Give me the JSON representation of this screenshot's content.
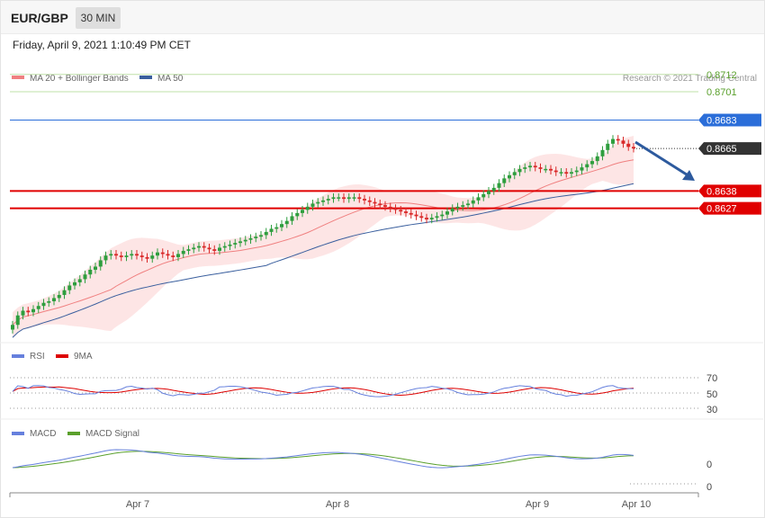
{
  "header": {
    "symbol": "EUR/GBP",
    "timeframe": "30 MIN",
    "datetime": "Friday, April 9, 2021 1:10:49 PM CET"
  },
  "legend": {
    "ma_bands": "MA 20 + Bollinger Bands",
    "ma50": "MA 50",
    "copyright": "Research © 2021 Trading Central"
  },
  "colors": {
    "up": "#2e9e3e",
    "down": "#d92828",
    "band_fill": "#fcdcdc",
    "ma20": "#f08080",
    "ma50": "#3a5f9e",
    "resistance_green": "#bfe0a8",
    "current": "#333333",
    "blue_level": "#2b6ed9",
    "support_red": "#e00000",
    "rsi": "#6680dd",
    "rsi_ma": "#dd0000",
    "macd": "#6680dd",
    "macd_signal": "#5aa02c"
  },
  "chart_data": [
    {
      "type": "candlestick",
      "title": "EUR/GBP 30 MIN",
      "x_ticks": [
        "Apr 7",
        "Apr 8",
        "Apr 9",
        "Apr 10"
      ],
      "ylim": [
        0.8548,
        0.8725
      ],
      "indicators": [
        "MA 20 + Bollinger Bands",
        "MA 50"
      ],
      "close_series_approx": [
        0.8553,
        0.8559,
        0.8562,
        0.8561,
        0.8563,
        0.8565,
        0.8567,
        0.8568,
        0.857,
        0.8572,
        0.8575,
        0.8578,
        0.858,
        0.8582,
        0.8585,
        0.8588,
        0.859,
        0.8594,
        0.8597,
        0.8598,
        0.8597,
        0.8596,
        0.8597,
        0.8598,
        0.8597,
        0.8596,
        0.8595,
        0.8597,
        0.8599,
        0.8598,
        0.8597,
        0.8596,
        0.8598,
        0.86,
        0.8601,
        0.8602,
        0.8603,
        0.8602,
        0.8601,
        0.86,
        0.8602,
        0.8603,
        0.8604,
        0.8605,
        0.8606,
        0.8607,
        0.8608,
        0.8609,
        0.861,
        0.8612,
        0.8614,
        0.8615,
        0.8617,
        0.8619,
        0.8622,
        0.8624,
        0.8626,
        0.8628,
        0.863,
        0.8631,
        0.8632,
        0.8633,
        0.8634,
        0.8634,
        0.8633,
        0.8634,
        0.8634,
        0.8633,
        0.8632,
        0.8631,
        0.863,
        0.8629,
        0.8628,
        0.8627,
        0.8626,
        0.8625,
        0.8624,
        0.8623,
        0.8622,
        0.8621,
        0.862,
        0.8621,
        0.8622,
        0.8623,
        0.8625,
        0.8627,
        0.8628,
        0.8629,
        0.863,
        0.8632,
        0.8634,
        0.8636,
        0.8638,
        0.864,
        0.8643,
        0.8646,
        0.8648,
        0.865,
        0.8652,
        0.8653,
        0.8654,
        0.8653,
        0.8652,
        0.8652,
        0.8651,
        0.865,
        0.865,
        0.8649,
        0.865,
        0.8651,
        0.8653,
        0.8655,
        0.8657,
        0.866,
        0.8664,
        0.8668,
        0.8671,
        0.867,
        0.8668,
        0.8666,
        0.8665
      ]
    },
    {
      "type": "line",
      "title": "RSI",
      "series": [
        {
          "name": "RSI"
        },
        {
          "name": "9MA"
        }
      ],
      "levels": [
        70,
        50,
        30
      ]
    },
    {
      "type": "line",
      "title": "MACD",
      "series": [
        {
          "name": "MACD"
        },
        {
          "name": "MACD Signal"
        }
      ],
      "levels": [
        0,
        0
      ]
    }
  ],
  "levels": [
    {
      "value": "0.8712",
      "style": "green"
    },
    {
      "value": "0.8701",
      "style": "green"
    },
    {
      "value": "0.8683",
      "style": "blue"
    },
    {
      "value": "0.8665",
      "style": "current"
    },
    {
      "value": "0.8638",
      "style": "red"
    },
    {
      "value": "0.8627",
      "style": "red"
    }
  ],
  "rsi": {
    "legend_rsi": "RSI",
    "legend_ma": "9MA",
    "lv70": "70",
    "lv50": "50",
    "lv30": "30"
  },
  "macd": {
    "legend_macd": "MACD",
    "legend_signal": "MACD Signal",
    "lv0a": "0",
    "lv0b": "0"
  },
  "x_axis": {
    "t1": "Apr 7",
    "t2": "Apr 8",
    "t3": "Apr 9",
    "t4": "Apr 10"
  }
}
